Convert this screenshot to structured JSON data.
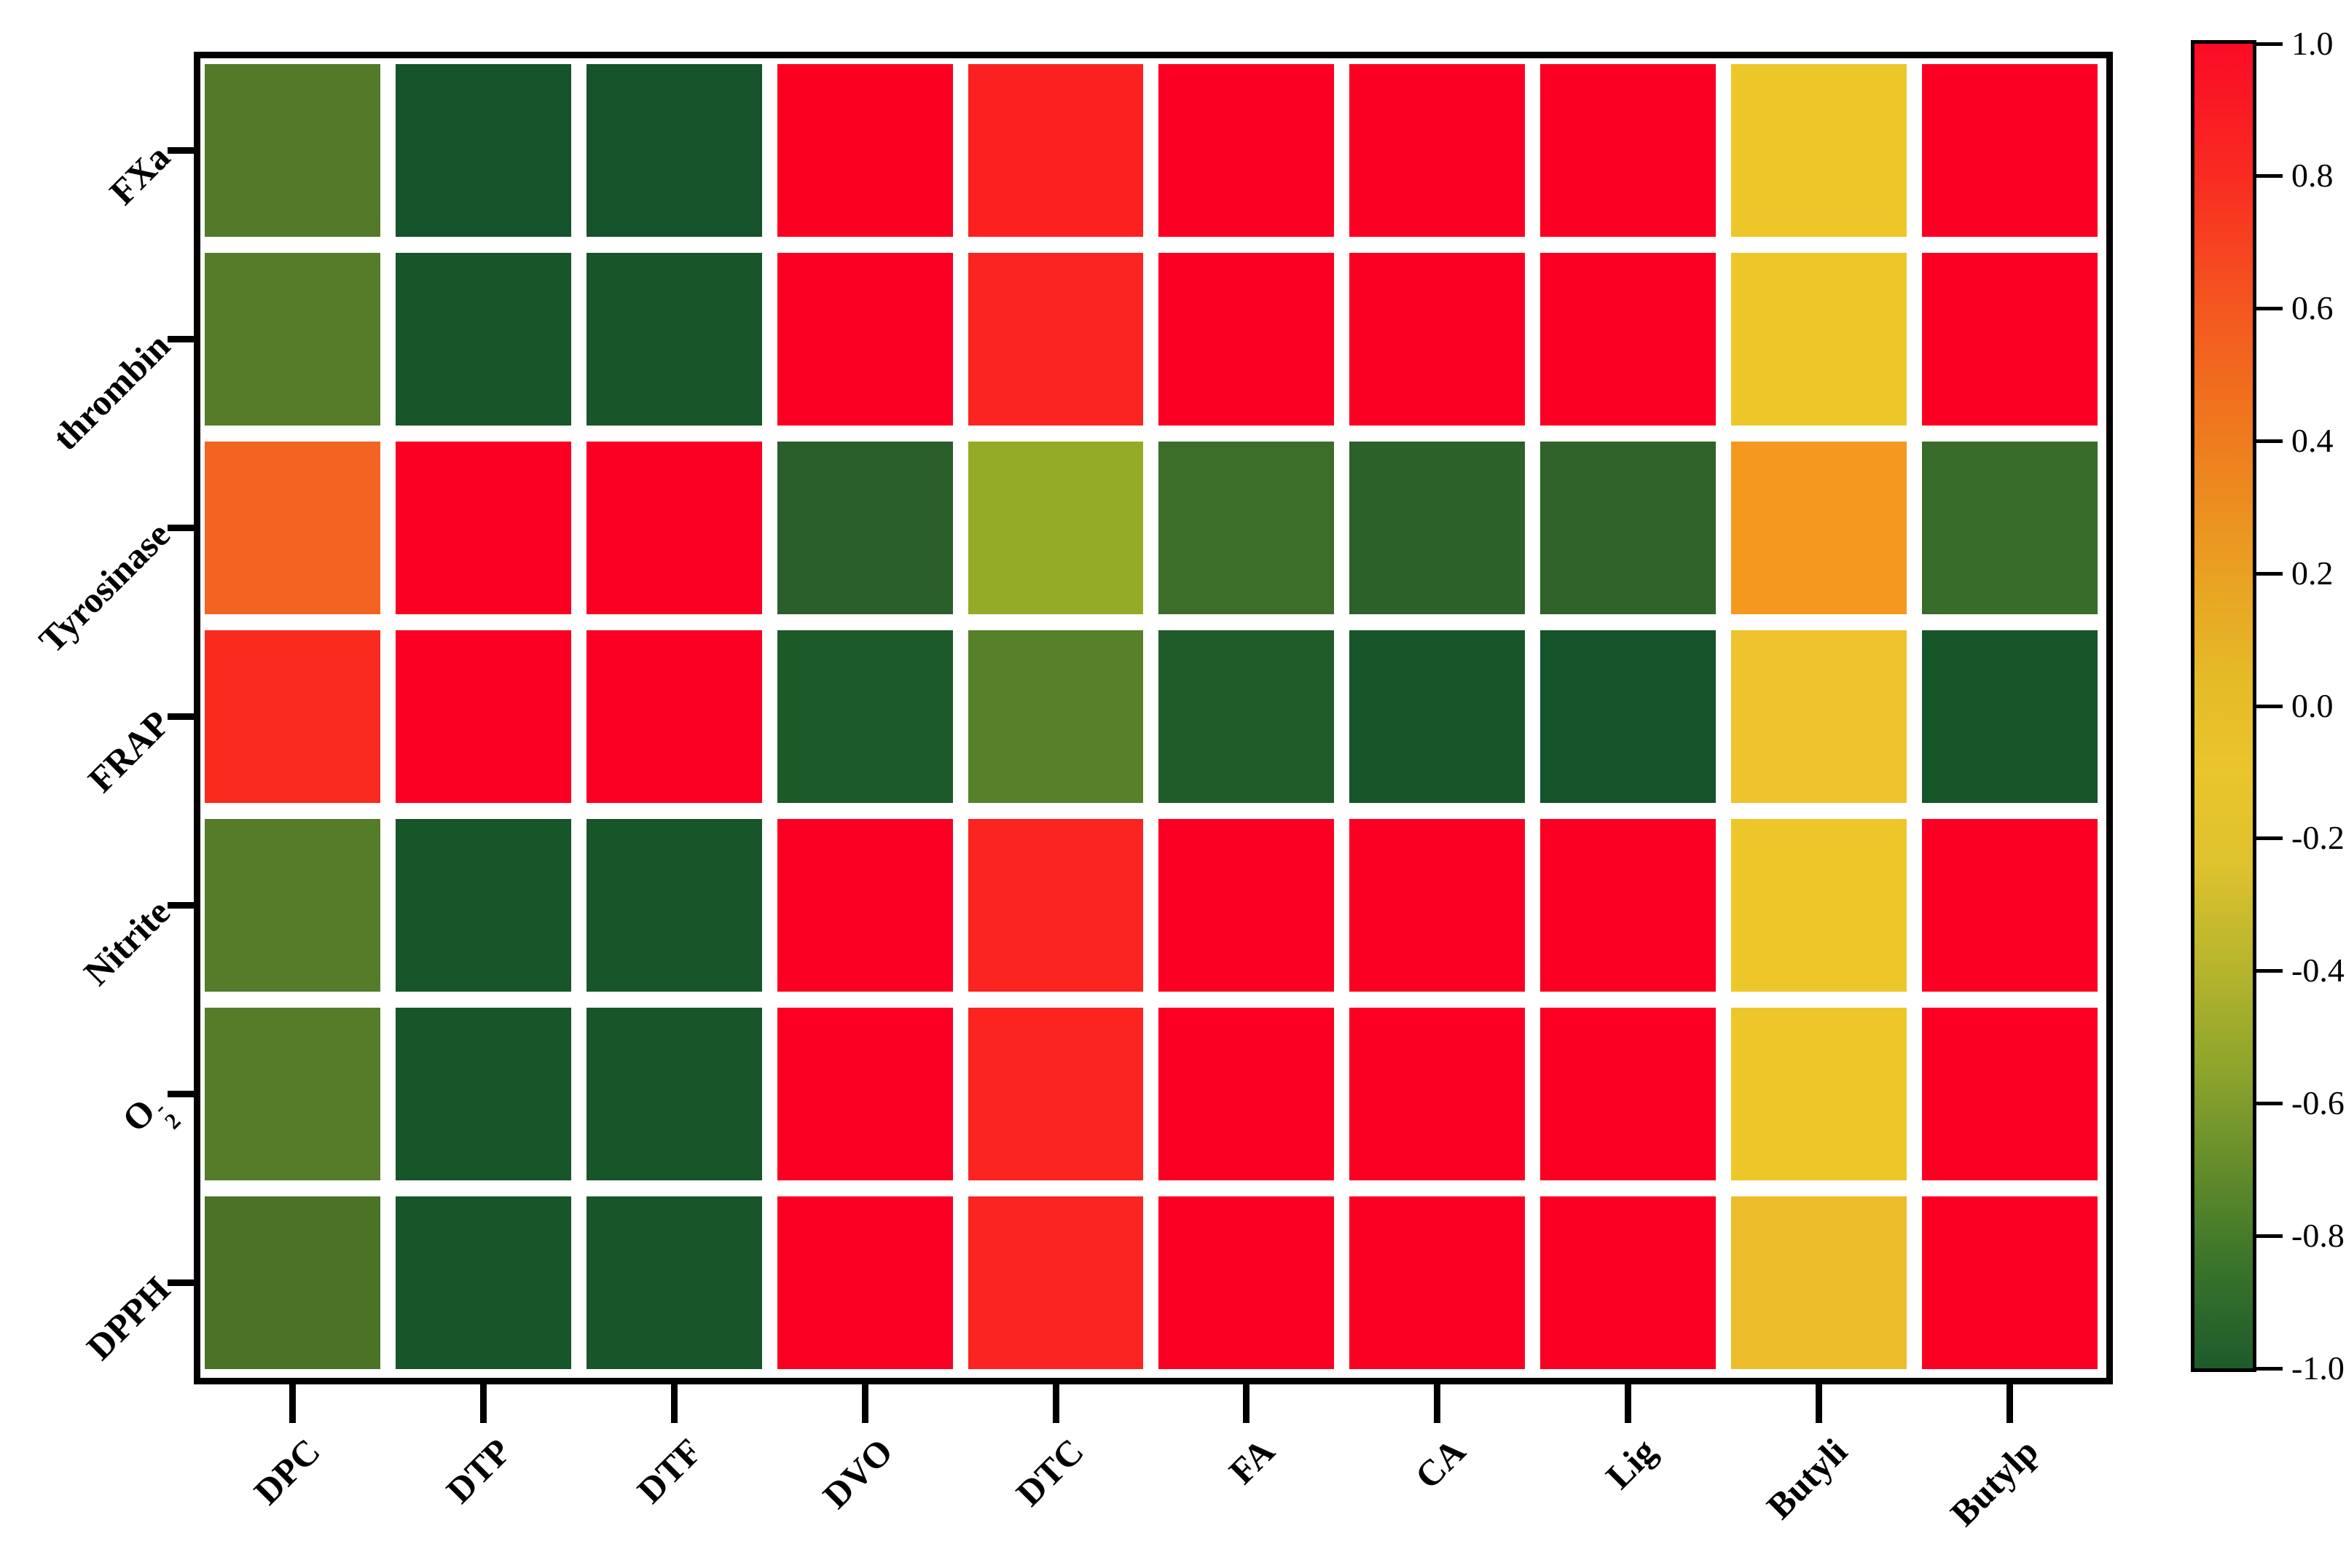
{
  "figure": {
    "background": "#ffffff",
    "frame_color": "#000000",
    "gap_color": "#ffffff"
  },
  "chart_data": {
    "type": "heatmap",
    "title": "",
    "xlabel": "",
    "ylabel": "",
    "grid": false,
    "legend_position": "right-colorbar",
    "x_categories": [
      "DPC",
      "DTP",
      "DTF",
      "DVO",
      "DTC",
      "FA",
      "CA",
      "Lig",
      "Butyli",
      "Butylp"
    ],
    "y_categories": [
      {
        "label": "FXa"
      },
      {
        "label": "thrombin"
      },
      {
        "label": "Tyrosinase"
      },
      {
        "label": "FRAP"
      },
      {
        "label": "Nitrite"
      },
      {
        "label": "O2-",
        "base": "O",
        "sub": "2",
        "sup": "-"
      },
      {
        "label": "DPPH"
      }
    ],
    "values": [
      [
        -0.68,
        -0.95,
        -0.95,
        0.97,
        0.85,
        0.97,
        0.97,
        0.97,
        -0.1,
        0.97
      ],
      [
        -0.7,
        -0.93,
        -0.93,
        0.97,
        0.83,
        0.97,
        0.97,
        0.97,
        -0.1,
        0.97
      ],
      [
        0.5,
        0.95,
        0.95,
        -0.85,
        -0.5,
        -0.8,
        -0.85,
        -0.84,
        0.3,
        -0.8
      ],
      [
        0.85,
        0.95,
        0.95,
        -0.92,
        -0.7,
        -0.9,
        -0.95,
        -0.95,
        -0.08,
        -0.95
      ],
      [
        -0.7,
        -0.95,
        -0.95,
        0.97,
        0.85,
        0.97,
        0.97,
        0.97,
        -0.1,
        0.97
      ],
      [
        -0.7,
        -0.93,
        -0.93,
        0.97,
        0.85,
        0.97,
        0.97,
        0.97,
        -0.1,
        0.97
      ],
      [
        -0.72,
        -0.93,
        -0.93,
        0.97,
        0.87,
        0.97,
        0.97,
        0.97,
        -0.02,
        0.97
      ]
    ],
    "cell_colors": [
      [
        "#527A28",
        "#15532A",
        "#15532A",
        "#FC0021",
        "#FC2120",
        "#FB0022",
        "#FB0022",
        "#FB0022",
        "#EDC72A",
        "#FB0022"
      ],
      [
        "#557C29",
        "#175629",
        "#175629",
        "#FB0022",
        "#FB2420",
        "#FB0022",
        "#FB0022",
        "#FB0022",
        "#EDC72A",
        "#FB0022"
      ],
      [
        "#F36322",
        "#FB0023",
        "#FB0023",
        "#2A5E2A",
        "#94AB28",
        "#3C6E2A",
        "#2D612A",
        "#2F632A",
        "#F5991E",
        "#386C2A"
      ],
      [
        "#FB2A1E",
        "#FB0023",
        "#FB0023",
        "#1C5A2A",
        "#57802A",
        "#1F5C2A",
        "#175629",
        "#15542A",
        "#EEC32D",
        "#175629"
      ],
      [
        "#557C29",
        "#175629",
        "#175629",
        "#FB0022",
        "#FB2420",
        "#FB0022",
        "#FB0022",
        "#FB0022",
        "#EDC72A",
        "#FB0022"
      ],
      [
        "#557C29",
        "#175629",
        "#175629",
        "#FB0022",
        "#FB2420",
        "#FB0022",
        "#FB0022",
        "#FB0022",
        "#EDC72A",
        "#FB0022"
      ],
      [
        "#4A7326",
        "#175629",
        "#175629",
        "#FB0022",
        "#FB2420",
        "#FB0022",
        "#FB0022",
        "#FB0022",
        "#EDBC2B",
        "#FB0022"
      ]
    ],
    "colorbar": {
      "min": -1.0,
      "max": 1.0,
      "tick_labels": [
        "1.0",
        "0.8",
        "0.6",
        "0.4",
        "0.2",
        "0.0",
        "-0.2",
        "-0.4",
        "-0.6",
        "-0.8",
        "-1.0"
      ],
      "gradient_stops": [
        [
          "0%",
          "#FB0B26"
        ],
        [
          "10%",
          "#F92B21"
        ],
        [
          "20%",
          "#F4571F"
        ],
        [
          "30%",
          "#EF7C1E"
        ],
        [
          "40%",
          "#E9A122"
        ],
        [
          "48%",
          "#E5BB28"
        ],
        [
          "55%",
          "#EAC52C"
        ],
        [
          "62%",
          "#DEC22E"
        ],
        [
          "70%",
          "#B5B42D"
        ],
        [
          "78%",
          "#8AA32C"
        ],
        [
          "85%",
          "#638C2B"
        ],
        [
          "92%",
          "#3A752A"
        ],
        [
          "100%",
          "#1E5B2C"
        ]
      ]
    }
  }
}
